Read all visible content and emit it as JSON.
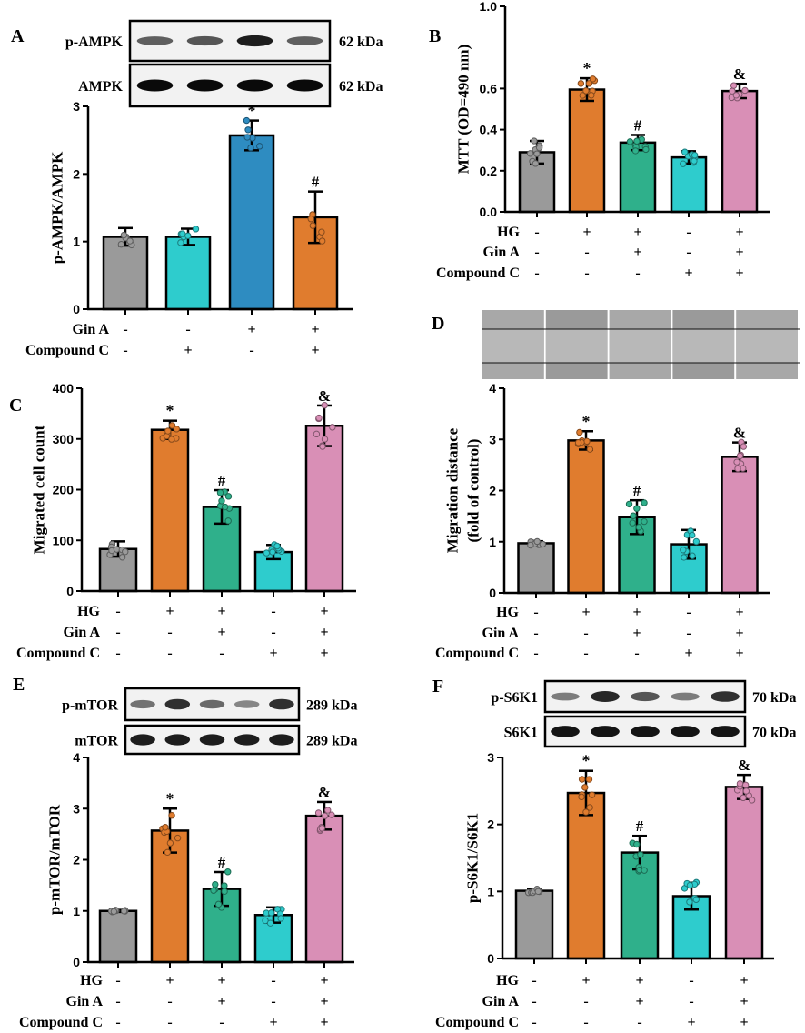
{
  "colors": {
    "grey": "#9a9a9a",
    "orange": "#e07c2e",
    "green": "#2fb08b",
    "cyan": "#2ecccd",
    "pink": "#d98fb6",
    "blue": "#2e8cc1"
  },
  "chart_data": [
    {
      "id": "A",
      "type": "bar",
      "letter": "A",
      "ylabel": [
        "p-AMPK/AMPK"
      ],
      "ylim": [
        0,
        3
      ],
      "yticks": [
        "0",
        "1",
        "2",
        "3"
      ],
      "ytick_values": [
        0,
        1,
        2,
        3
      ],
      "rows": [
        {
          "label": "Gin A",
          "signs": [
            "-",
            "-",
            "+",
            "+"
          ]
        },
        {
          "label": "Compound C",
          "signs": [
            "-",
            "+",
            "-",
            "+"
          ]
        }
      ],
      "values": [
        1.07,
        1.07,
        2.57,
        1.36
      ],
      "sd": [
        0.13,
        0.12,
        0.22,
        0.38
      ],
      "colors": [
        "grey",
        "cyan",
        "blue",
        "orange"
      ],
      "annotations": [
        "",
        "",
        "*",
        "#"
      ],
      "blot": [
        {
          "label": "p-AMPK",
          "kda": "62 kDa",
          "bands": [
            0.55,
            0.6,
            0.9,
            0.55
          ]
        },
        {
          "label": "AMPK",
          "kda": "62 kDa",
          "bands": [
            1,
            1,
            1,
            1
          ]
        }
      ]
    },
    {
      "id": "B",
      "type": "bar",
      "letter": "B",
      "ylabel": [
        "MTT (OD=490 nm)"
      ],
      "ylim": [
        0,
        1
      ],
      "yticks": [
        "0.0",
        "0.2",
        "0.4",
        "0.6",
        "1.0"
      ],
      "ytick_values": [
        0,
        0.2,
        0.4,
        0.6,
        1.0
      ],
      "rows": [
        {
          "label": "HG",
          "signs": [
            "-",
            "+",
            "+",
            "-",
            "+"
          ]
        },
        {
          "label": "Gin A",
          "signs": [
            "-",
            "-",
            "+",
            "-",
            "+"
          ]
        },
        {
          "label": "Compound C",
          "signs": [
            "-",
            "-",
            "-",
            "+",
            "+"
          ]
        }
      ],
      "values": [
        0.29,
        0.595,
        0.337,
        0.265,
        0.588
      ],
      "sd": [
        0.055,
        0.055,
        0.037,
        0.03,
        0.035
      ],
      "colors": [
        "grey",
        "orange",
        "green",
        "cyan",
        "pink"
      ],
      "annotations": [
        "",
        "*",
        "#",
        "",
        "&"
      ]
    },
    {
      "id": "C",
      "type": "bar",
      "letter": "C",
      "ylabel": [
        "Migrated cell count"
      ],
      "ylim": [
        0,
        400
      ],
      "yticks": [
        "0",
        "100",
        "200",
        "300",
        "400"
      ],
      "ytick_values": [
        0,
        100,
        200,
        300,
        400
      ],
      "rows": [
        {
          "label": "HG",
          "signs": [
            "-",
            "+",
            "+",
            "-",
            "+"
          ]
        },
        {
          "label": "Gin A",
          "signs": [
            "-",
            "-",
            "+",
            "-",
            "+"
          ]
        },
        {
          "label": "Compound C",
          "signs": [
            "-",
            "-",
            "-",
            "+",
            "+"
          ]
        }
      ],
      "values": [
        83,
        318,
        166,
        77,
        326
      ],
      "sd": [
        15,
        18,
        33,
        14,
        40
      ],
      "colors": [
        "grey",
        "orange",
        "green",
        "cyan",
        "pink"
      ],
      "annotations": [
        "",
        "*",
        "#",
        "",
        "&"
      ]
    },
    {
      "id": "D",
      "type": "bar",
      "letter": "D",
      "ylabel": [
        "Migration distance",
        "(fold of control)"
      ],
      "ylim": [
        0,
        4
      ],
      "yticks": [
        "0",
        "1",
        "2",
        "3",
        "4"
      ],
      "ytick_values": [
        0,
        1,
        2,
        3,
        4
      ],
      "rows": [
        {
          "label": "HG",
          "signs": [
            "-",
            "+",
            "+",
            "-",
            "+"
          ]
        },
        {
          "label": "Gin A",
          "signs": [
            "-",
            "-",
            "+",
            "-",
            "+"
          ]
        },
        {
          "label": "Compound C",
          "signs": [
            "-",
            "-",
            "-",
            "+",
            "+"
          ]
        }
      ],
      "values": [
        0.97,
        2.98,
        1.48,
        0.95,
        2.66
      ],
      "sd": [
        0.04,
        0.18,
        0.33,
        0.28,
        0.28
      ],
      "colors": [
        "grey",
        "orange",
        "green",
        "cyan",
        "pink"
      ],
      "annotations": [
        "",
        "*",
        "#",
        "",
        "&"
      ],
      "micrographs": 5
    },
    {
      "id": "E",
      "type": "bar",
      "letter": "E",
      "ylabel": [
        "p-mTOR/mTOR"
      ],
      "ylim": [
        0,
        4
      ],
      "yticks": [
        "0",
        "1",
        "2",
        "3",
        "4"
      ],
      "ytick_values": [
        0,
        1,
        2,
        3,
        4
      ],
      "rows": [
        {
          "label": "HG",
          "signs": [
            "-",
            "+",
            "+",
            "-",
            "+"
          ]
        },
        {
          "label": "Gin A",
          "signs": [
            "-",
            "-",
            "+",
            "-",
            "+"
          ]
        },
        {
          "label": "Compound C",
          "signs": [
            "-",
            "-",
            "-",
            "+",
            "+"
          ]
        }
      ],
      "values": [
        1.0,
        2.57,
        1.43,
        0.92,
        2.86
      ],
      "sd": [
        0.02,
        0.43,
        0.33,
        0.15,
        0.27
      ],
      "colors": [
        "grey",
        "orange",
        "green",
        "cyan",
        "pink"
      ],
      "annotations": [
        "",
        "*",
        "#",
        "",
        "&"
      ],
      "blot": [
        {
          "label": "p-mTOR",
          "kda": "289 kDa",
          "bands": [
            0.45,
            0.8,
            0.5,
            0.35,
            0.8
          ]
        },
        {
          "label": "mTOR",
          "kda": "289 kDa",
          "bands": [
            0.9,
            0.9,
            0.9,
            0.9,
            0.9
          ]
        }
      ]
    },
    {
      "id": "F",
      "type": "bar",
      "letter": "F",
      "ylabel": [
        "p-S6K1/S6K1"
      ],
      "ylim": [
        0,
        3
      ],
      "yticks": [
        "0",
        "1",
        "2",
        "3"
      ],
      "ytick_values": [
        0,
        1,
        2,
        3
      ],
      "rows": [
        {
          "label": "HG",
          "signs": [
            "-",
            "+",
            "+",
            "-",
            "+"
          ]
        },
        {
          "label": "Gin A",
          "signs": [
            "-",
            "-",
            "+",
            "-",
            "+"
          ]
        },
        {
          "label": "Compound C",
          "signs": [
            "-",
            "-",
            "-",
            "+",
            "+"
          ]
        }
      ],
      "values": [
        1.01,
        2.47,
        1.58,
        0.93,
        2.56
      ],
      "sd": [
        0.03,
        0.33,
        0.25,
        0.2,
        0.18
      ],
      "colors": [
        "grey",
        "orange",
        "green",
        "cyan",
        "pink"
      ],
      "annotations": [
        "",
        "*",
        "#",
        "",
        "&"
      ],
      "blot": [
        {
          "label": "p-S6K1",
          "kda": "70 kDa",
          "bands": [
            0.4,
            0.85,
            0.6,
            0.4,
            0.8
          ]
        },
        {
          "label": "S6K1",
          "kda": "70 kDa",
          "bands": [
            0.95,
            0.95,
            0.95,
            0.95,
            0.95
          ]
        }
      ]
    }
  ]
}
